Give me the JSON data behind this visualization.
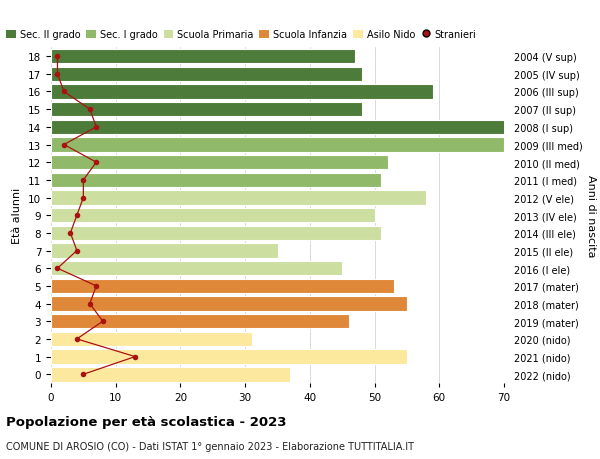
{
  "ages": [
    0,
    1,
    2,
    3,
    4,
    5,
    6,
    7,
    8,
    9,
    10,
    11,
    12,
    13,
    14,
    15,
    16,
    17,
    18
  ],
  "bar_values": [
    37,
    55,
    31,
    46,
    55,
    53,
    45,
    35,
    51,
    50,
    58,
    51,
    52,
    70,
    71,
    48,
    59,
    48,
    47
  ],
  "stranieri": [
    5,
    13,
    4,
    8,
    6,
    7,
    1,
    4,
    3,
    4,
    5,
    5,
    7,
    2,
    7,
    6,
    2,
    1,
    1
  ],
  "right_labels": [
    "2022 (nido)",
    "2021 (nido)",
    "2020 (nido)",
    "2019 (mater)",
    "2018 (mater)",
    "2017 (mater)",
    "2016 (I ele)",
    "2015 (II ele)",
    "2014 (III ele)",
    "2013 (IV ele)",
    "2012 (V ele)",
    "2011 (I med)",
    "2010 (II med)",
    "2009 (III med)",
    "2008 (I sup)",
    "2007 (II sup)",
    "2006 (III sup)",
    "2005 (IV sup)",
    "2004 (V sup)"
  ],
  "bar_colors": [
    "#fce99e",
    "#fce99e",
    "#fce99e",
    "#e0883a",
    "#e0883a",
    "#e0883a",
    "#ccdfa0",
    "#ccdfa0",
    "#ccdfa0",
    "#ccdfa0",
    "#ccdfa0",
    "#90ba6a",
    "#90ba6a",
    "#90ba6a",
    "#4d7c3a",
    "#4d7c3a",
    "#4d7c3a",
    "#4d7c3a",
    "#4d7c3a"
  ],
  "legend_labels": [
    "Sec. II grado",
    "Sec. I grado",
    "Scuola Primaria",
    "Scuola Infanzia",
    "Asilo Nido",
    "Stranieri"
  ],
  "legend_colors": [
    "#4d7c3a",
    "#90ba6a",
    "#ccdfa0",
    "#e0883a",
    "#fce99e",
    "#aa1111"
  ],
  "ylabel": "Età alunni",
  "right_ylabel": "Anni di nascita",
  "title": "Popolazione per età scolastica - 2023",
  "subtitle": "COMUNE DI AROSIO (CO) - Dati ISTAT 1° gennaio 2023 - Elaborazione TUTTITALIA.IT",
  "xlim": [
    0,
    70
  ],
  "xticks": [
    0,
    10,
    20,
    30,
    40,
    50,
    60,
    70
  ],
  "bar_height": 0.82,
  "stranieri_color": "#aa1111",
  "background_color": "#ffffff",
  "grid_color": "#cccccc"
}
